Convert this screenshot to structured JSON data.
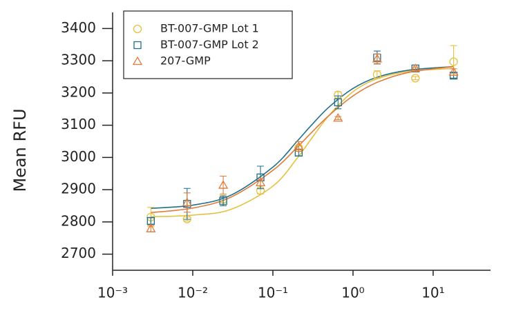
{
  "chart_data": {
    "type": "scatter",
    "y_label": "Mean RFU",
    "log_x": true,
    "xlim": [
      0.001,
      52
    ],
    "ylim": [
      2650,
      3450
    ],
    "xticks": [
      {
        "value": 0.001,
        "label": "10⁻³"
      },
      {
        "value": 0.01,
        "label": "10⁻²"
      },
      {
        "value": 0.1,
        "label": "10⁻¹"
      },
      {
        "value": 1,
        "label": "10⁰"
      },
      {
        "value": 10,
        "label": "10¹"
      }
    ],
    "yticks": [
      2700,
      2800,
      2900,
      3000,
      3100,
      3200,
      3300,
      3400
    ],
    "legend": "top-left",
    "x": [
      0.003,
      0.0085,
      0.024,
      0.07,
      0.21,
      0.65,
      2.0,
      6.0,
      18.0
    ],
    "fit_x": [
      0.003,
      0.01,
      0.03,
      0.1,
      0.2,
      0.3,
      0.5,
      1,
      2,
      5,
      18
    ],
    "series": [
      {
        "name": "BT-007-GMP Lot 1",
        "color": "#e6c040",
        "marker": "circle",
        "values": [
          2815,
          2809,
          2870,
          2897,
          3030,
          3194,
          3257,
          3246,
          3297
        ],
        "errors": [
          30,
          6,
          10,
          10,
          6,
          10,
          12,
          5,
          50
        ],
        "fit": [
          2816,
          2821,
          2839,
          2911,
          2997,
          3057,
          3130,
          3204,
          3244,
          3267,
          3276
        ]
      },
      {
        "name": "BT-007-GMP Lot 2",
        "color": "#1f6f8b",
        "marker": "square",
        "values": [
          2803,
          2856,
          2865,
          2938,
          3015,
          3171,
          3310,
          3276,
          3254
        ],
        "errors": [
          10,
          48,
          15,
          35,
          10,
          20,
          20,
          5,
          8
        ],
        "fit": [
          2842,
          2852,
          2883,
          2970,
          3050,
          3099,
          3156,
          3214,
          3249,
          3271,
          3282
        ]
      },
      {
        "name": "207-GMP",
        "color": "#e07b39",
        "marker": "triangle",
        "values": [
          2779,
          2860,
          2914,
          2922,
          3034,
          3122,
          3306,
          3276,
          3265
        ],
        "errors": [
          10,
          30,
          28,
          10,
          15,
          5,
          15,
          5,
          10
        ],
        "fit": [
          2829,
          2843,
          2877,
          2960,
          3031,
          3076,
          3130,
          3191,
          3233,
          3264,
          3282
        ]
      }
    ]
  }
}
